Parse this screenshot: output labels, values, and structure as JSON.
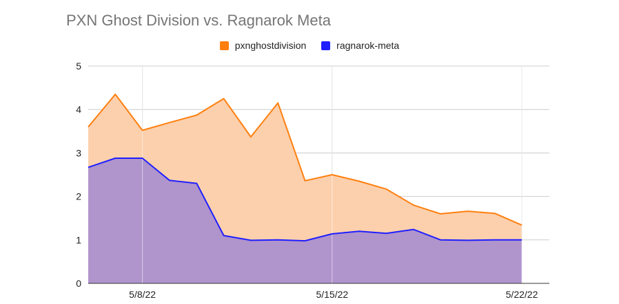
{
  "chart_data": {
    "type": "area",
    "title": "PXN Ghost Division vs. Ragnarok Meta",
    "xlabel": "",
    "ylabel": "",
    "ylim": [
      0,
      5
    ],
    "y_ticks": [
      "0",
      "1",
      "2",
      "3",
      "4",
      "5"
    ],
    "x_ticks": [
      "5/8/22",
      "5/15/22",
      "5/22/22"
    ],
    "x": [
      "2022-05-06",
      "2022-05-07",
      "2022-05-08",
      "2022-05-09",
      "2022-05-10",
      "2022-05-11",
      "2022-05-12",
      "2022-05-13",
      "2022-05-14",
      "2022-05-15",
      "2022-05-16",
      "2022-05-17",
      "2022-05-18",
      "2022-05-19",
      "2022-05-20",
      "2022-05-21",
      "2022-05-22"
    ],
    "series": [
      {
        "name": "pxnghostdivision",
        "color": "#ff7f0e",
        "fill": "#fcd0ad",
        "values": [
          3.6,
          4.35,
          3.52,
          3.7,
          3.87,
          4.25,
          3.37,
          4.15,
          2.36,
          2.5,
          2.35,
          2.17,
          1.8,
          1.6,
          1.66,
          1.61,
          1.34
        ]
      },
      {
        "name": "ragnarok-meta",
        "color": "#1f1fff",
        "fill": "#b094cc",
        "values": [
          2.67,
          2.88,
          2.88,
          2.37,
          2.3,
          1.1,
          0.99,
          1.0,
          0.98,
          1.14,
          1.2,
          1.15,
          1.24,
          1.0,
          0.99,
          1.0,
          1.0
        ]
      }
    ],
    "grid": true,
    "legend_position": "top"
  }
}
